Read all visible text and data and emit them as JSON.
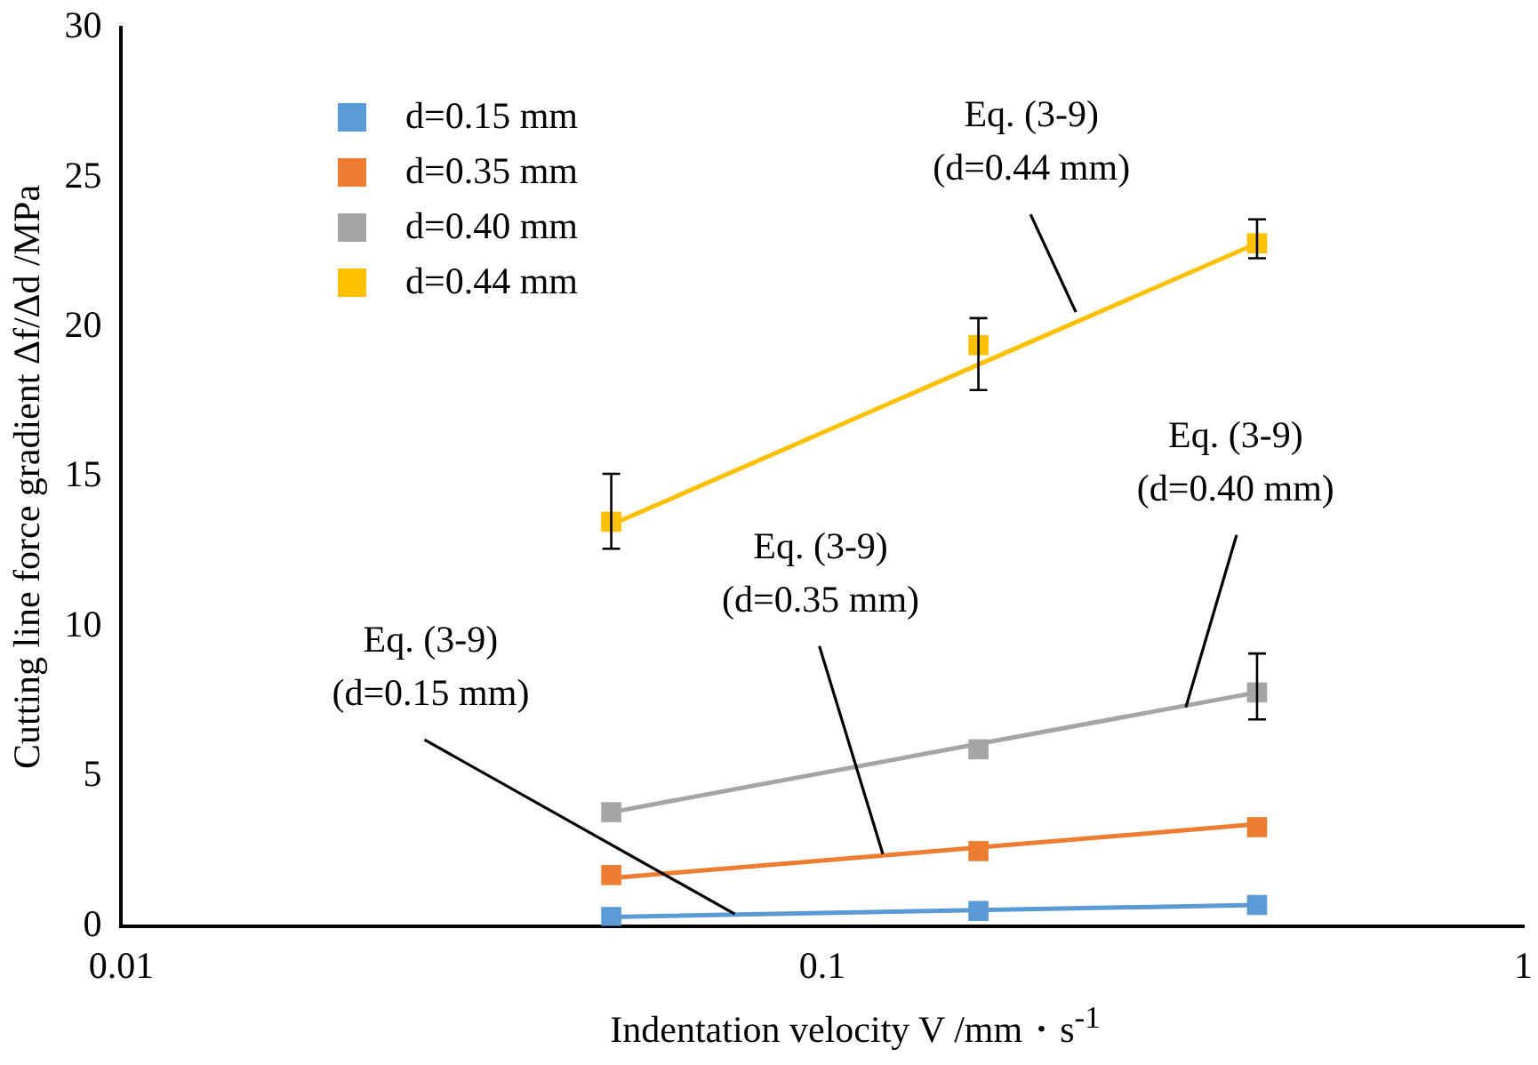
{
  "chart_data": {
    "type": "scatter",
    "xlabel": "Indentation velocity V /mm・s$^{-1}$",
    "ylabel": "Cutting line force gradient Δf/Δd /MPa",
    "log": "x",
    "xlim": [
      0.01,
      1
    ],
    "xticks": [
      0.01,
      0.1,
      1
    ],
    "ylim": [
      0,
      30
    ],
    "yticks": [
      0,
      5,
      10,
      15,
      20,
      25,
      30
    ],
    "grid": false,
    "legend": "top left",
    "marker": "square",
    "x": [
      0.05,
      0.167,
      0.417
    ],
    "series": [
      {
        "name": "d=0.15 mm",
        "color": "#5b9bd5",
        "values": [
          0.3,
          0.5,
          0.7
        ]
      },
      {
        "name": "d=0.35 mm",
        "color": "#ed7d31",
        "values": [
          1.7,
          2.5,
          3.3
        ]
      },
      {
        "name": "d=0.40 mm",
        "color": "#a5a5a5",
        "values": [
          3.8,
          5.9,
          7.8
        ],
        "errors": [
          null,
          null,
          [
            6.9,
            9.1
          ]
        ]
      },
      {
        "name": "d=0.44 mm",
        "color": "#ffc000",
        "values": [
          13.5,
          19.4,
          22.8
        ],
        "errors": [
          [
            12.6,
            15.1
          ],
          [
            17.9,
            20.3
          ],
          [
            22.3,
            23.6
          ]
        ]
      },
      {
        "type": "line",
        "marker": "none",
        "color": "#5b9bd5",
        "values": [
          0.3,
          0.53,
          0.7
        ]
      },
      {
        "type": "line",
        "marker": "none",
        "color": "#ed7d31",
        "values": [
          1.6,
          2.62,
          3.4
        ]
      },
      {
        "type": "line",
        "marker": "none",
        "color": "#a5a5a5",
        "values": [
          3.8,
          6.08,
          7.8
        ]
      },
      {
        "type": "line",
        "marker": "none",
        "color": "#ffc000",
        "values": [
          13.4,
          18.75,
          22.8
        ]
      }
    ],
    "annotations": [
      {
        "text": "Eq. (3-9)\n(d=0.15 mm)",
        "x": 0.075,
        "y": 0.4
      },
      {
        "text": "Eq. (3-9)\n(d=0.35 mm)",
        "x": 0.122,
        "y": 2.4
      },
      {
        "text": "Eq. (3-9)\n(d=0.40 mm)",
        "x": 0.33,
        "y": 7.3
      },
      {
        "text": "Eq. (3-9)\n(d=0.44 mm)",
        "x": 0.23,
        "y": 20.5
      }
    ]
  }
}
